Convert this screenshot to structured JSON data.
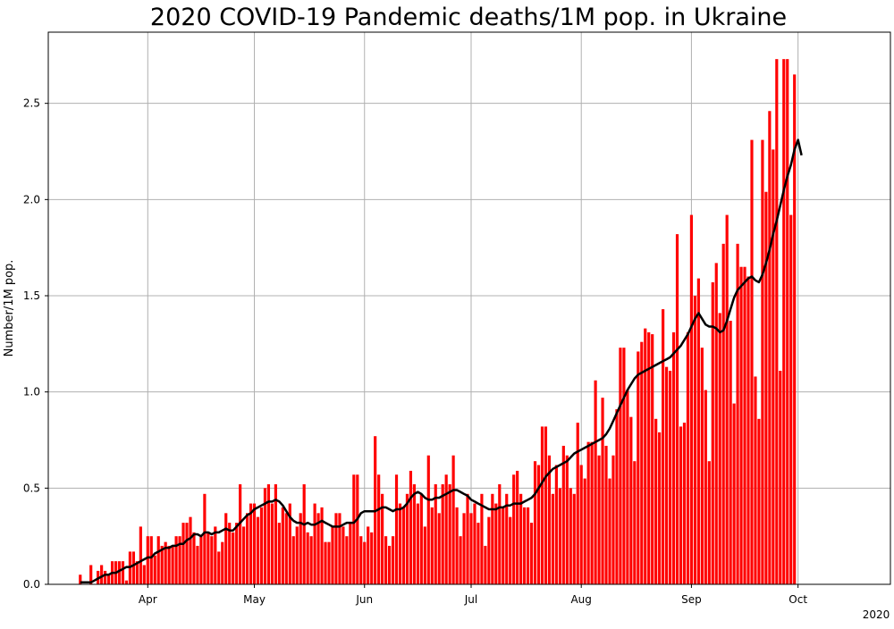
{
  "chart_data": {
    "type": "bar",
    "title": "2020 COVID-19 Pandemic deaths/1M pop. in Ukraine",
    "xlabel": "",
    "ylabel": "Number/1M pop.",
    "x_corner_label": "2020",
    "x_start_date": "2020-03-13",
    "x_range": [
      "2020-03-04",
      "2020-10-27"
    ],
    "ylim": [
      0,
      2.87
    ],
    "yticks": [
      "0.0",
      "0.5",
      "1.0",
      "1.5",
      "2.0",
      "2.5"
    ],
    "xticks": [
      {
        "label": "Apr",
        "date": "2020-04-01"
      },
      {
        "label": "May",
        "date": "2020-05-01"
      },
      {
        "label": "Jun",
        "date": "2020-06-01"
      },
      {
        "label": "Jul",
        "date": "2020-07-01"
      },
      {
        "label": "Aug",
        "date": "2020-08-01"
      },
      {
        "label": "Sep",
        "date": "2020-09-01"
      },
      {
        "label": "Oct",
        "date": "2020-10-01"
      }
    ],
    "grid": true,
    "colors": {
      "bars": "#ff0000",
      "line": "#000000",
      "grid": "#b0b0b0"
    },
    "series": [
      {
        "type": "bar",
        "values": [
          0.05,
          0,
          0,
          0.1,
          0,
          0.07,
          0.1,
          0.07,
          0.05,
          0.12,
          0.12,
          0.12,
          0.12,
          0.02,
          0.17,
          0.17,
          0.12,
          0.3,
          0.1,
          0.25,
          0.25,
          0.15,
          0.25,
          0.2,
          0.22,
          0.2,
          0.2,
          0.25,
          0.25,
          0.32,
          0.32,
          0.35,
          0.27,
          0.2,
          0.25,
          0.47,
          0.27,
          0.25,
          0.3,
          0.17,
          0.22,
          0.37,
          0.32,
          0.27,
          0.32,
          0.52,
          0.3,
          0.37,
          0.42,
          0.42,
          0.35,
          0.4,
          0.5,
          0.52,
          0.42,
          0.52,
          0.32,
          0.4,
          0.37,
          0.42,
          0.25,
          0.3,
          0.37,
          0.52,
          0.27,
          0.25,
          0.42,
          0.37,
          0.4,
          0.22,
          0.22,
          0.3,
          0.37,
          0.37,
          0.3,
          0.25,
          0.32,
          0.57,
          0.57,
          0.25,
          0.22,
          0.3,
          0.27,
          0.77,
          0.57,
          0.47,
          0.25,
          0.2,
          0.25,
          0.57,
          0.42,
          0.4,
          0.47,
          0.59,
          0.52,
          0.42,
          0.47,
          0.3,
          0.67,
          0.4,
          0.52,
          0.37,
          0.52,
          0.57,
          0.52,
          0.67,
          0.4,
          0.25,
          0.37,
          0.47,
          0.37,
          0.42,
          0.32,
          0.47,
          0.2,
          0.35,
          0.47,
          0.42,
          0.52,
          0.4,
          0.47,
          0.35,
          0.57,
          0.59,
          0.47,
          0.4,
          0.4,
          0.32,
          0.64,
          0.62,
          0.82,
          0.82,
          0.67,
          0.47,
          0.62,
          0.5,
          0.72,
          0.67,
          0.5,
          0.47,
          0.84,
          0.62,
          0.55,
          0.74,
          0.74,
          1.06,
          0.67,
          0.97,
          0.72,
          0.55,
          0.67,
          0.91,
          1.23,
          1.23,
          1.01,
          0.87,
          0.64,
          1.21,
          1.26,
          1.33,
          1.31,
          1.3,
          0.86,
          0.79,
          1.43,
          1.13,
          1.11,
          1.31,
          1.82,
          0.82,
          0.84,
          1.31,
          1.92,
          1.5,
          1.59,
          1.23,
          1.01,
          0.64,
          1.57,
          1.67,
          1.41,
          1.77,
          1.92,
          1.37,
          0.94,
          1.77,
          1.65,
          1.65,
          1.6,
          2.31,
          1.08,
          0.86,
          2.31,
          2.04,
          2.46,
          2.26,
          2.73,
          1.11,
          2.73,
          2.73,
          1.92,
          2.65
        ]
      },
      {
        "type": "line",
        "values": [
          0.01,
          0.01,
          0.01,
          0.01,
          0.02,
          0.03,
          0.04,
          0.05,
          0.05,
          0.06,
          0.06,
          0.07,
          0.08,
          0.09,
          0.09,
          0.1,
          0.11,
          0.12,
          0.13,
          0.14,
          0.14,
          0.16,
          0.17,
          0.18,
          0.19,
          0.19,
          0.2,
          0.2,
          0.21,
          0.21,
          0.23,
          0.24,
          0.26,
          0.26,
          0.25,
          0.27,
          0.27,
          0.26,
          0.27,
          0.27,
          0.28,
          0.29,
          0.28,
          0.28,
          0.3,
          0.32,
          0.34,
          0.36,
          0.37,
          0.39,
          0.4,
          0.41,
          0.42,
          0.43,
          0.43,
          0.44,
          0.43,
          0.41,
          0.38,
          0.35,
          0.33,
          0.32,
          0.32,
          0.31,
          0.32,
          0.31,
          0.31,
          0.32,
          0.33,
          0.32,
          0.31,
          0.3,
          0.3,
          0.3,
          0.31,
          0.32,
          0.32,
          0.32,
          0.34,
          0.37,
          0.38,
          0.38,
          0.38,
          0.38,
          0.39,
          0.4,
          0.4,
          0.39,
          0.38,
          0.39,
          0.39,
          0.4,
          0.42,
          0.45,
          0.47,
          0.48,
          0.47,
          0.45,
          0.44,
          0.44,
          0.45,
          0.45,
          0.46,
          0.47,
          0.48,
          0.49,
          0.49,
          0.48,
          0.47,
          0.46,
          0.44,
          0.43,
          0.42,
          0.41,
          0.4,
          0.39,
          0.39,
          0.39,
          0.4,
          0.4,
          0.41,
          0.41,
          0.42,
          0.42,
          0.42,
          0.43,
          0.44,
          0.45,
          0.47,
          0.5,
          0.53,
          0.56,
          0.58,
          0.6,
          0.61,
          0.62,
          0.63,
          0.64,
          0.66,
          0.68,
          0.69,
          0.7,
          0.71,
          0.72,
          0.73,
          0.74,
          0.75,
          0.76,
          0.78,
          0.81,
          0.85,
          0.89,
          0.93,
          0.97,
          1.01,
          1.04,
          1.07,
          1.09,
          1.1,
          1.11,
          1.12,
          1.13,
          1.14,
          1.15,
          1.16,
          1.17,
          1.18,
          1.2,
          1.22,
          1.24,
          1.27,
          1.3,
          1.34,
          1.38,
          1.41,
          1.38,
          1.35,
          1.34,
          1.34,
          1.33,
          1.31,
          1.32,
          1.37,
          1.43,
          1.49,
          1.53,
          1.55,
          1.57,
          1.59,
          1.6,
          1.58,
          1.57,
          1.61,
          1.67,
          1.74,
          1.82,
          1.89,
          1.97,
          2.05,
          2.12,
          2.18,
          2.26,
          2.31,
          2.23
        ]
      }
    ]
  }
}
